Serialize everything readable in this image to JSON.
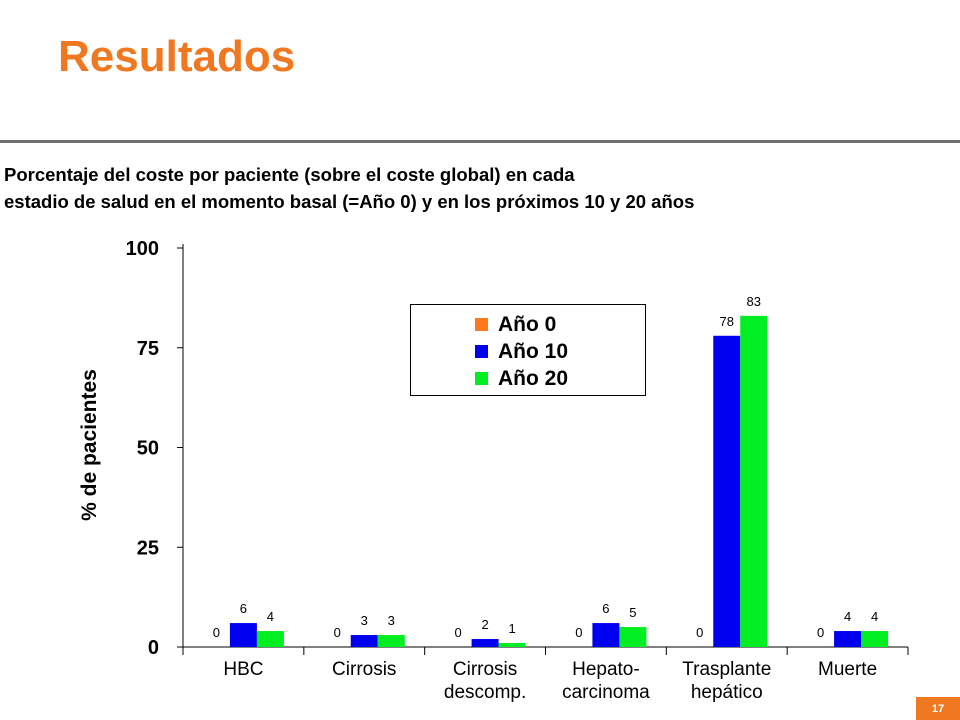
{
  "slide": {
    "title": "Resultados",
    "subtitle_line1": "Porcentaje del coste por paciente (sobre el coste global) en cada",
    "subtitle_line2": "estadio de salud en el momento basal (=Año 0) y en los próximos 10 y 20 años",
    "page_number": "17"
  },
  "colors": {
    "accent": "#f07820",
    "rule": "#707070"
  },
  "chart_data": {
    "type": "bar",
    "title": "",
    "xlabel": "",
    "ylabel": "% de pacientes",
    "ylim": [
      0,
      100
    ],
    "yticks": [
      "0",
      "25",
      "50",
      "75",
      "100"
    ],
    "grid": false,
    "legend_position": "top-center",
    "categories": [
      [
        "HBC"
      ],
      [
        "Cirrosis"
      ],
      [
        "Cirrosis",
        "descomp."
      ],
      [
        "Hepato-",
        "carcinoma"
      ],
      [
        "Trasplante",
        "hepático"
      ],
      [
        "Muerte"
      ]
    ],
    "series": [
      {
        "name": "Año 0",
        "color": "#ff7a1f",
        "values": [
          0,
          0,
          0,
          0,
          0,
          0
        ],
        "labels": [
          "0",
          "0",
          "0",
          "0",
          "0",
          "0"
        ]
      },
      {
        "name": "Año 10",
        "color": "#0000f0",
        "values": [
          6,
          3,
          2,
          6,
          78,
          4
        ],
        "labels": [
          "6",
          "3",
          "2",
          "6",
          "78",
          "4"
        ]
      },
      {
        "name": "Año 20",
        "color": "#00ee22",
        "values": [
          4,
          3,
          1,
          5,
          83,
          4
        ],
        "labels": [
          "4",
          "3",
          "1",
          "5",
          "83",
          "4"
        ]
      }
    ]
  }
}
